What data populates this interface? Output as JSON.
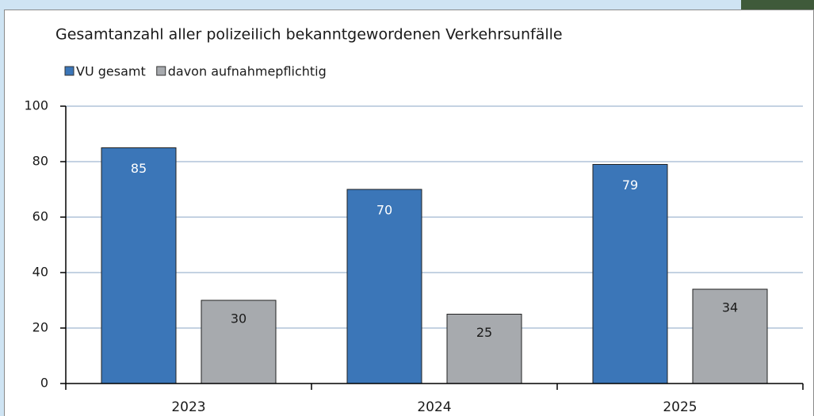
{
  "chart_data": {
    "type": "bar",
    "title": "Gesamtanzahl aller polizeilich bekanntgewordenen Verkehrsunfälle",
    "categories": [
      "2023",
      "2024",
      "2025"
    ],
    "series": [
      {
        "name": "VU gesamt",
        "color": "#3b76b8",
        "values": [
          85,
          70,
          79
        ]
      },
      {
        "name": "davon aufnahmepflichtig",
        "color": "#a7aaae",
        "values": [
          30,
          25,
          34
        ]
      }
    ],
    "ylim": [
      0,
      100
    ],
    "yticks": [
      0,
      20,
      40,
      60,
      80,
      100
    ],
    "grid": true
  }
}
